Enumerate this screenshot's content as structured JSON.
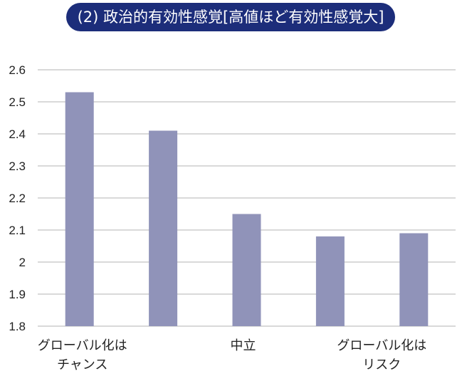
{
  "chart_data": {
    "type": "bar",
    "title": "(2) 政治的有効性感覚[高値ほど有効性感覚大]",
    "categories": [
      "グローバル化は\nチャンス",
      "",
      "中立",
      "",
      "グローバル化は\nリスク"
    ],
    "values": [
      2.53,
      2.41,
      2.15,
      2.08,
      2.09
    ],
    "ylim": [
      1.8,
      2.6
    ],
    "yticks": [
      "1.8",
      "1.9",
      "2",
      "2.1",
      "2.2",
      "2.3",
      "2.4",
      "2.5",
      "2.6"
    ],
    "xlabel": "",
    "ylabel": "",
    "grid": true,
    "bar_color": "#9093b9",
    "grid_color": "#d9d9d9",
    "title_bg": "#1c2d7a"
  }
}
